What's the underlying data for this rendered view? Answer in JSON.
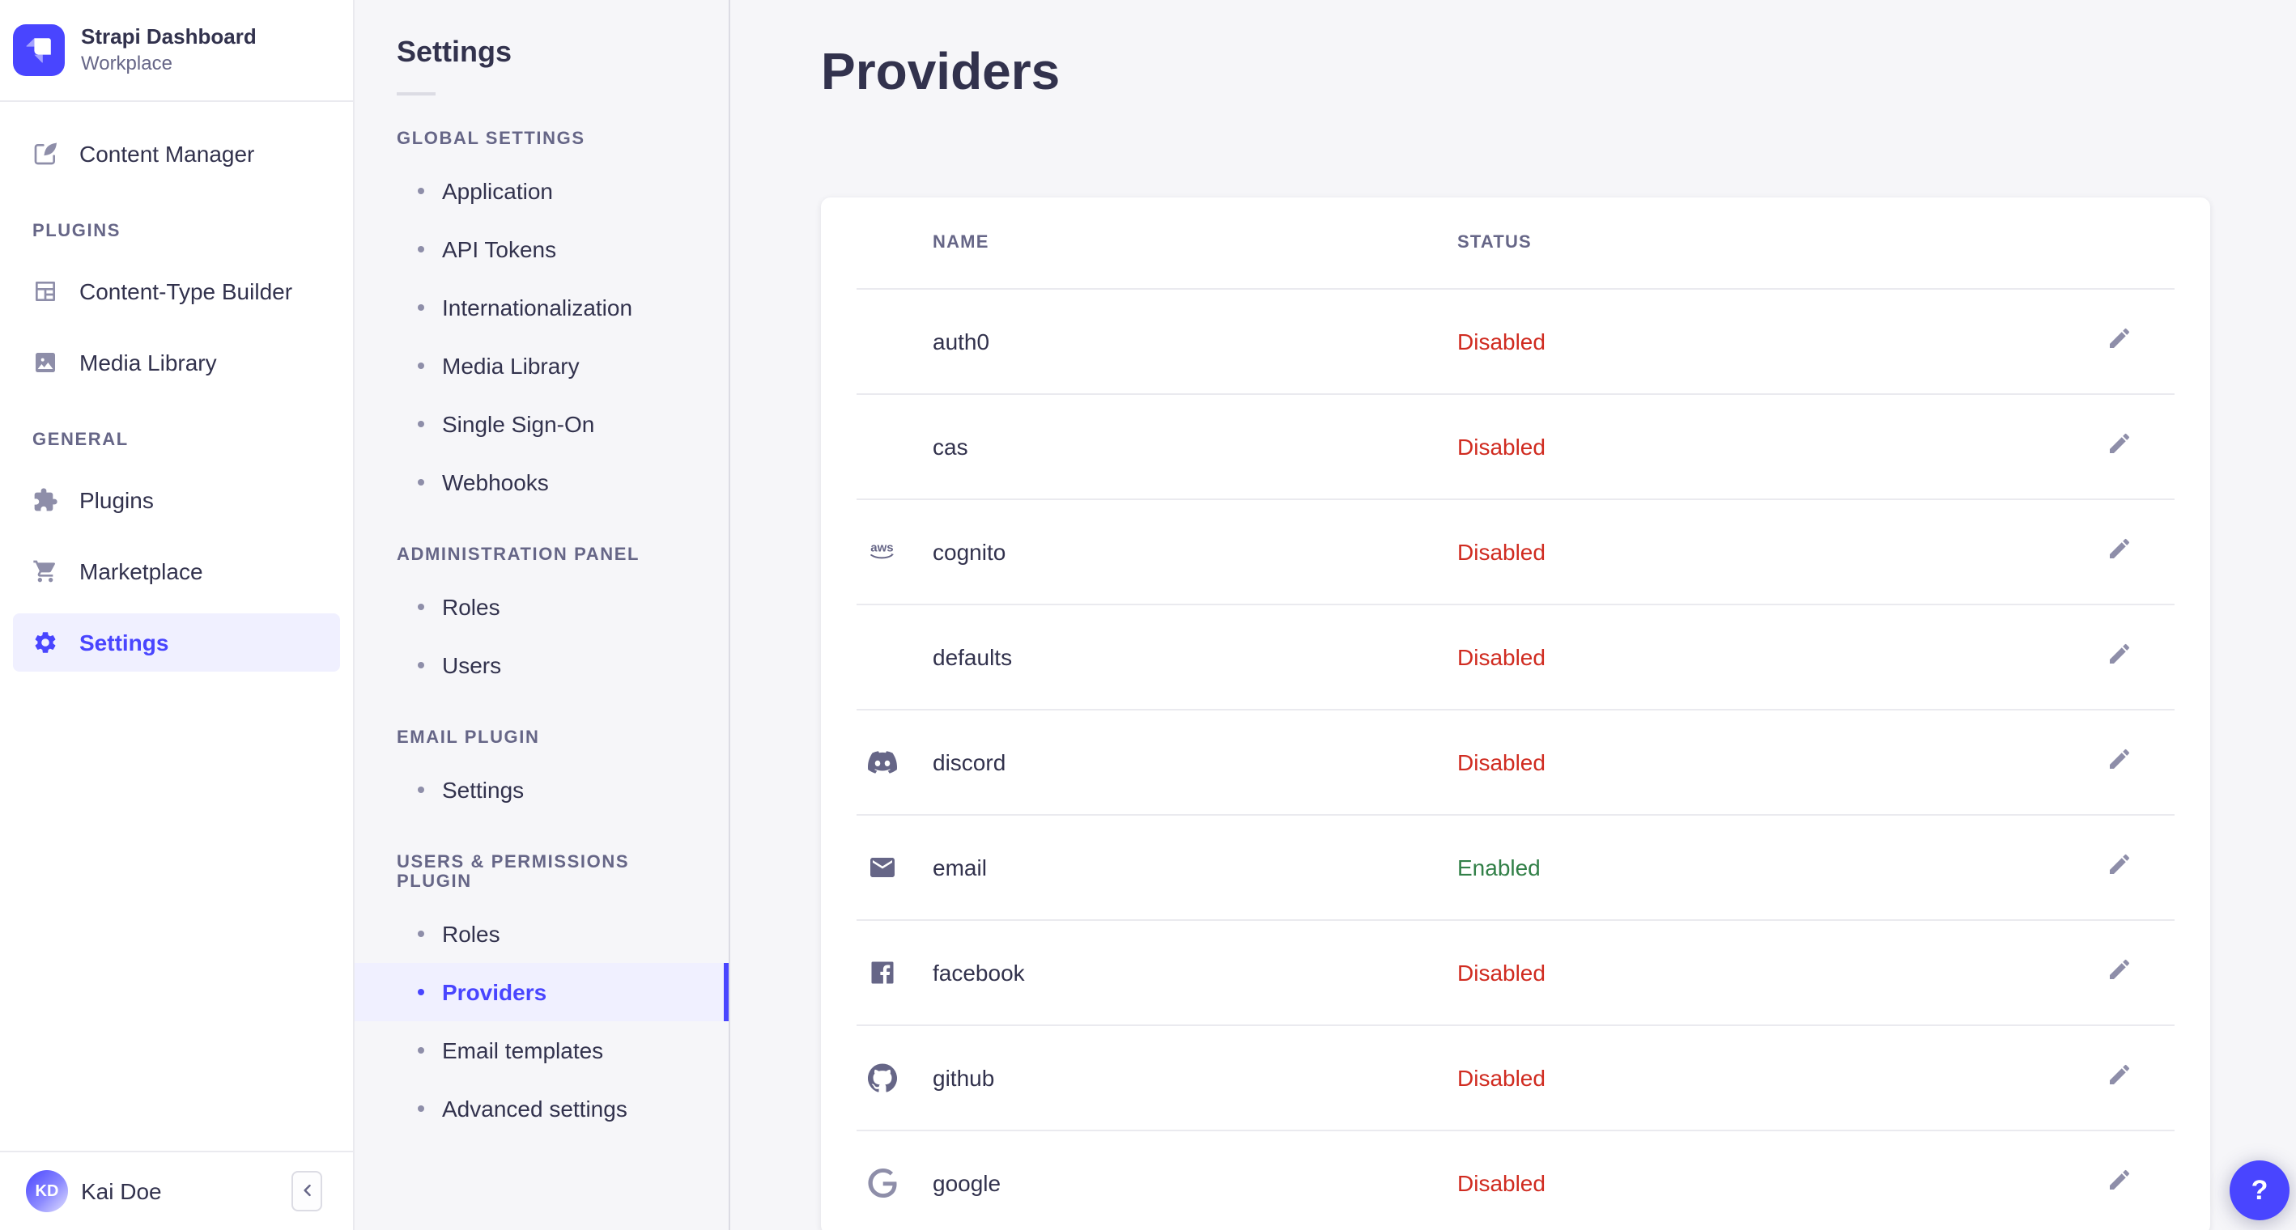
{
  "brand": {
    "title": "Strapi Dashboard",
    "subtitle": "Workplace"
  },
  "colors": {
    "primary": "#4945ff",
    "primary_light": "#f0f0ff",
    "danger": "#d02b20",
    "success": "#328048",
    "text": "#32324d",
    "muted": "#666687",
    "icon": "#8e8ea9",
    "background": "#f6f6f9"
  },
  "main_nav": {
    "groups": [
      {
        "label": "",
        "items": [
          {
            "label": "Content Manager",
            "icon": "content-manager",
            "active": false
          }
        ]
      },
      {
        "label": "PLUGINS",
        "items": [
          {
            "label": "Content-Type Builder",
            "icon": "content-type-builder",
            "active": false
          },
          {
            "label": "Media Library",
            "icon": "media-library",
            "active": false
          }
        ]
      },
      {
        "label": "GENERAL",
        "items": [
          {
            "label": "Plugins",
            "icon": "plugins",
            "active": false
          },
          {
            "label": "Marketplace",
            "icon": "marketplace",
            "active": false
          },
          {
            "label": "Settings",
            "icon": "settings",
            "active": true
          }
        ]
      }
    ],
    "user": {
      "name": "Kai Doe",
      "initials": "KD"
    }
  },
  "sub_nav": {
    "title": "Settings",
    "sections": [
      {
        "label": "GLOBAL SETTINGS",
        "items": [
          {
            "label": "Application",
            "active": false
          },
          {
            "label": "API Tokens",
            "active": false
          },
          {
            "label": "Internationalization",
            "active": false
          },
          {
            "label": "Media Library",
            "active": false
          },
          {
            "label": "Single Sign-On",
            "active": false
          },
          {
            "label": "Webhooks",
            "active": false
          }
        ]
      },
      {
        "label": "ADMINISTRATION PANEL",
        "items": [
          {
            "label": "Roles",
            "active": false
          },
          {
            "label": "Users",
            "active": false
          }
        ]
      },
      {
        "label": "EMAIL PLUGIN",
        "items": [
          {
            "label": "Settings",
            "active": false
          }
        ]
      },
      {
        "label": "USERS & PERMISSIONS PLUGIN",
        "items": [
          {
            "label": "Roles",
            "active": false
          },
          {
            "label": "Providers",
            "active": true
          },
          {
            "label": "Email templates",
            "active": false
          },
          {
            "label": "Advanced settings",
            "active": false
          }
        ]
      }
    ]
  },
  "page": {
    "title": "Providers",
    "table": {
      "columns": [
        "NAME",
        "STATUS"
      ],
      "rows": [
        {
          "name": "auth0",
          "icon": null,
          "status": "Disabled"
        },
        {
          "name": "cas",
          "icon": null,
          "status": "Disabled"
        },
        {
          "name": "cognito",
          "icon": "aws",
          "status": "Disabled"
        },
        {
          "name": "defaults",
          "icon": null,
          "status": "Disabled"
        },
        {
          "name": "discord",
          "icon": "discord",
          "status": "Disabled"
        },
        {
          "name": "email",
          "icon": "email",
          "status": "Enabled"
        },
        {
          "name": "facebook",
          "icon": "facebook",
          "status": "Disabled"
        },
        {
          "name": "github",
          "icon": "github",
          "status": "Disabled"
        },
        {
          "name": "google",
          "icon": "google",
          "status": "Disabled"
        }
      ]
    }
  },
  "help_button": {
    "label": "?"
  }
}
